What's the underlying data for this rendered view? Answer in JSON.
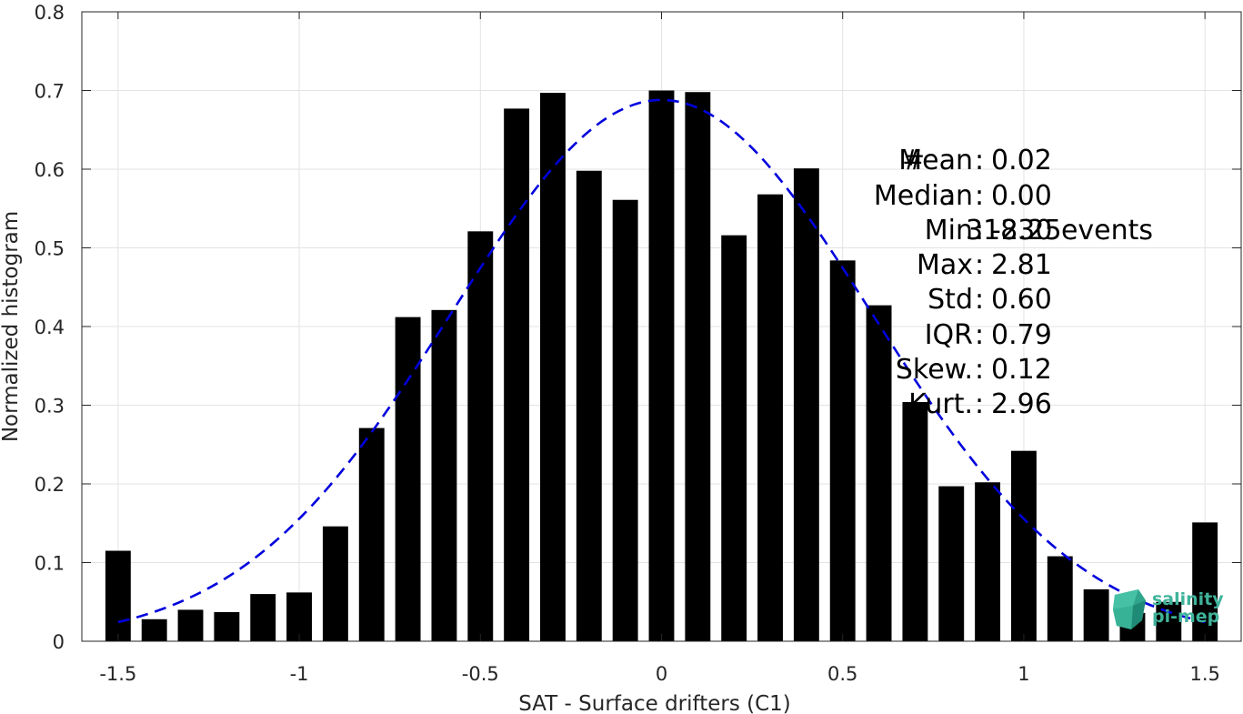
{
  "chart_data": {
    "type": "bar",
    "title": "",
    "xlabel": "SAT - Surface drifters (C1)",
    "ylabel": "Normalized histogram",
    "xlim": [
      -1.6,
      1.6
    ],
    "ylim": [
      0,
      0.8
    ],
    "grid": true,
    "x_ticks": [
      "-1.5",
      "-1",
      "-0.5",
      "0",
      "0.5",
      "1",
      "1.5"
    ],
    "y_ticks": [
      "0",
      "0.1",
      "0.2",
      "0.3",
      "0.4",
      "0.5",
      "0.6",
      "0.7",
      "0.8"
    ],
    "bar_width": 0.07,
    "bar_color": "#000000",
    "x": [
      -1.5,
      -1.4,
      -1.3,
      -1.2,
      -1.1,
      -1.0,
      -0.9,
      -0.8,
      -0.7,
      -0.6,
      -0.5,
      -0.4,
      -0.3,
      -0.2,
      -0.1,
      0.0,
      0.1,
      0.2,
      0.3,
      0.4,
      0.5,
      0.6,
      0.7,
      0.8,
      0.9,
      1.0,
      1.1,
      1.2,
      1.3,
      1.4,
      1.5
    ],
    "values": [
      0.115,
      0.028,
      0.04,
      0.037,
      0.06,
      0.062,
      0.146,
      0.271,
      0.412,
      0.421,
      0.521,
      0.677,
      0.697,
      0.598,
      0.561,
      0.7,
      0.698,
      0.516,
      0.568,
      0.601,
      0.484,
      0.427,
      0.304,
      0.197,
      0.202,
      0.242,
      0.108,
      0.066,
      0.036,
      0.05,
      0.151
    ],
    "fit_curve": {
      "type": "gaussian",
      "mean": 0.0,
      "sigma": 0.58,
      "peak": 0.688,
      "x_range": [
        -1.5,
        1.5
      ],
      "color": "#0000dd",
      "style": "dashed"
    }
  },
  "stats": {
    "count": {
      "key": "#",
      "value": "31830 events"
    },
    "rows": [
      {
        "key": "Mean",
        "value": "0.02"
      },
      {
        "key": "Median",
        "value": "0.00"
      },
      {
        "key": "Min",
        "value": "-2.25"
      },
      {
        "key": "Max",
        "value": "2.81"
      },
      {
        "key": "Std",
        "value": "0.60"
      },
      {
        "key": "IQR",
        "value": "0.79"
      },
      {
        "key": "Skew.",
        "value": "0.12"
      },
      {
        "key": "Kurt.",
        "value": "2.96"
      }
    ]
  },
  "logo": {
    "line1": "salinity",
    "line2": "pi-mep",
    "color": "#3fb39a",
    "icon": "salinity-pimep-logo-icon"
  }
}
